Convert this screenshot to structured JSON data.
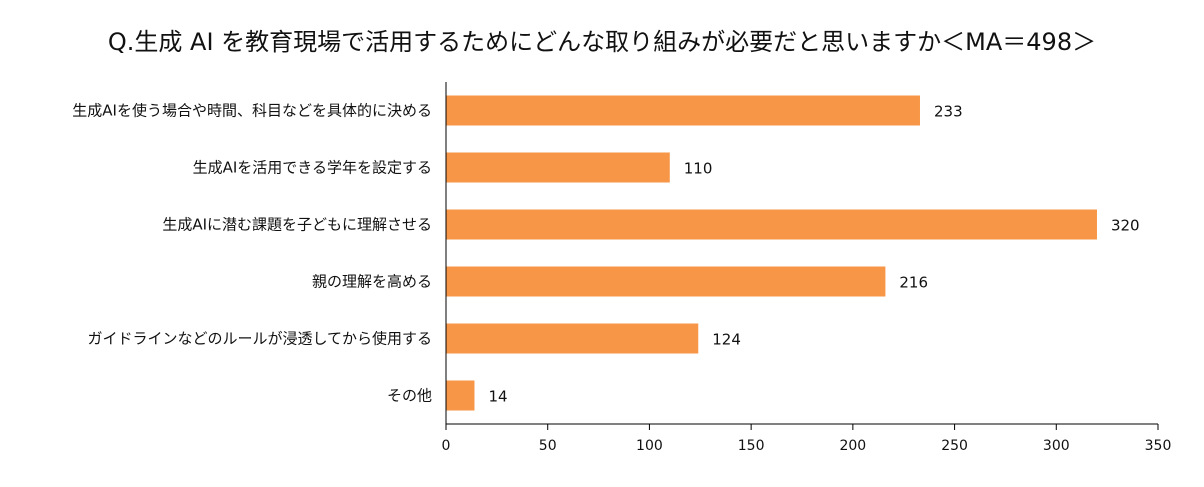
{
  "chart_data": {
    "type": "bar",
    "orientation": "horizontal",
    "title": "Q.生成 AI を教育現場で活用するためにどんな取り組みが必要だと思いますか＜MA＝498＞",
    "categories": [
      "生成AIを使う場合や時間、科目などを具体的に決める",
      "生成AIを活用できる学年を設定する",
      "生成AIに潜む課題を子どもに理解させる",
      "親の理解を高める",
      "ガイドラインなどのルールが浸透してから使用する",
      "その他"
    ],
    "values": [
      233,
      110,
      320,
      216,
      124,
      14
    ],
    "xlim": [
      0,
      350
    ],
    "xticks": [
      0,
      50,
      100,
      150,
      200,
      250,
      300,
      350
    ],
    "grid": false,
    "data_labels": true,
    "bar_color": "#F79646"
  }
}
